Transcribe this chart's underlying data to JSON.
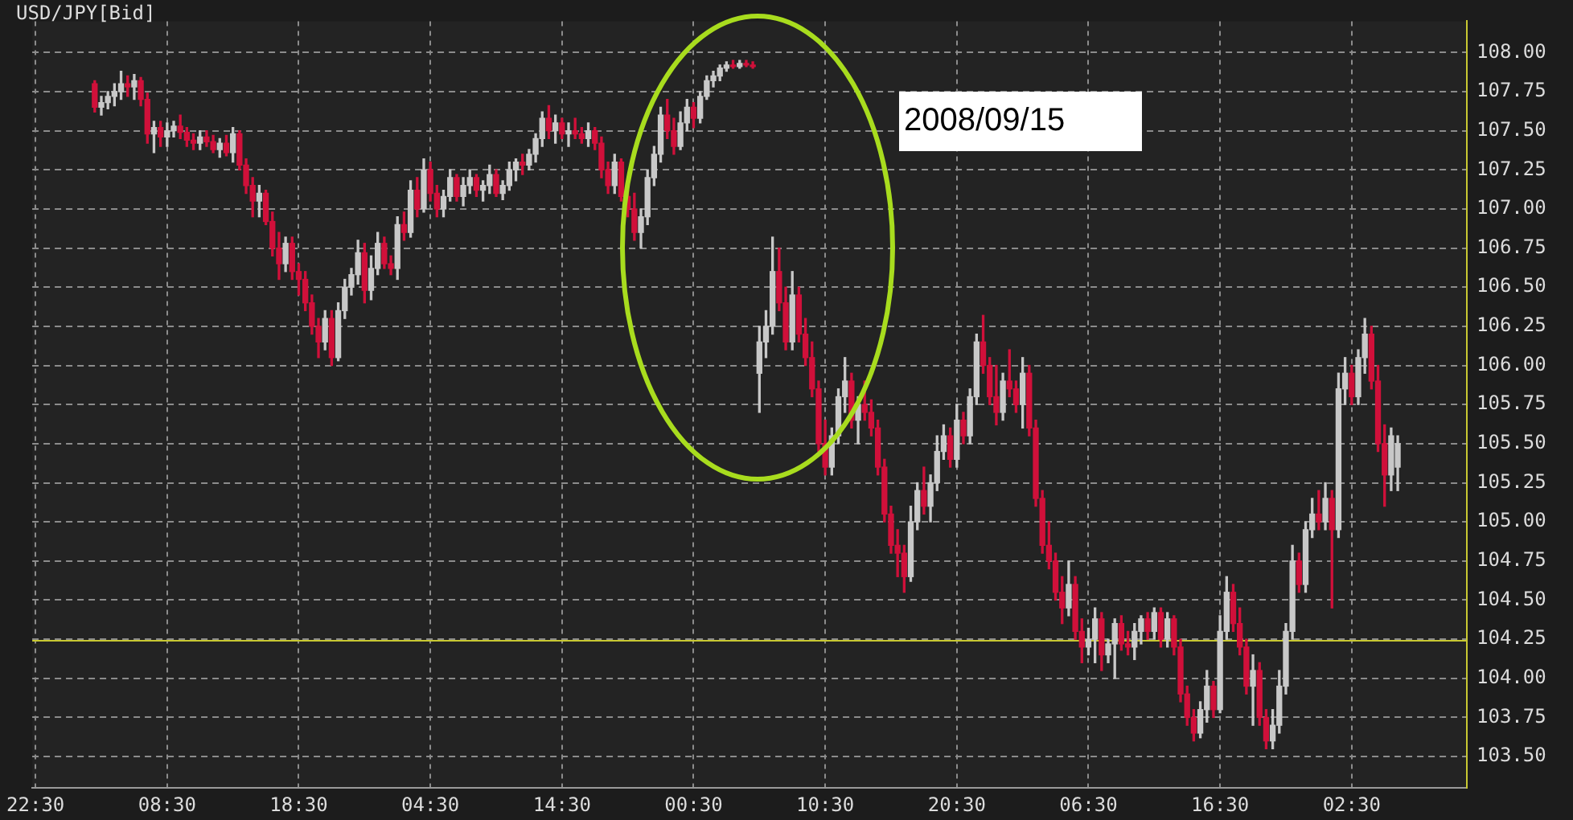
{
  "chart_data": {
    "type": "candlestick",
    "title": "USD/JPY[Bid]",
    "annotations": [
      "2008/09/15"
    ],
    "categories": [
      "22:30",
      null,
      null,
      null,
      null,
      null,
      null,
      null,
      null,
      null,
      null,
      null,
      null,
      null,
      null,
      null,
      null,
      null,
      null,
      null,
      "08:30",
      null,
      null,
      null,
      null,
      null,
      null,
      null,
      null,
      null,
      null,
      null,
      null,
      null,
      null,
      null,
      null,
      null,
      null,
      null,
      "18:30",
      null,
      null,
      null,
      null,
      null,
      null,
      null,
      null,
      null,
      null,
      null,
      null,
      null,
      null,
      null,
      null,
      null,
      null,
      null,
      "04:30",
      null,
      null,
      null,
      null,
      null,
      null,
      null,
      null,
      null,
      null,
      null,
      null,
      null,
      null,
      null,
      null,
      null,
      null,
      null,
      "14:30",
      null,
      null,
      null,
      null,
      null,
      null,
      null,
      null,
      null,
      null,
      null,
      null,
      null,
      null,
      null,
      null,
      null,
      null,
      null,
      "00:30",
      null,
      null,
      null,
      null,
      null,
      null,
      null,
      null,
      null,
      null,
      null,
      null,
      null,
      null,
      null,
      null,
      null,
      null,
      null,
      "10:30",
      null,
      null,
      null,
      null,
      null,
      null,
      null,
      null,
      null,
      null,
      null,
      null,
      null,
      null,
      null,
      null,
      null,
      null,
      null,
      "20:30",
      null,
      null,
      null,
      null,
      null,
      null,
      null,
      null,
      null,
      null,
      null,
      null,
      null,
      null,
      null,
      null,
      null,
      null,
      null,
      "06:30",
      null,
      null,
      null,
      null,
      null,
      null,
      null,
      null,
      null,
      null,
      null,
      null,
      null,
      null,
      null,
      null,
      null,
      null,
      null,
      "16:30",
      null,
      null,
      null,
      null,
      null,
      null,
      null,
      null,
      null,
      null,
      null,
      null,
      null,
      null,
      null,
      null,
      null,
      null,
      null,
      "02:30",
      null,
      null,
      null,
      null,
      null,
      null,
      null,
      null,
      null,
      null,
      null,
      null,
      null,
      null,
      null,
      null,
      null
    ],
    "ohlc": [
      null,
      null,
      null,
      null,
      null,
      null,
      null,
      null,
      null,
      [
        107.8,
        107.82,
        107.62,
        107.65
      ],
      [
        107.65,
        107.72,
        107.6,
        107.68
      ],
      [
        107.68,
        107.75,
        107.64,
        107.72
      ],
      [
        107.72,
        107.8,
        107.66,
        107.75
      ],
      [
        107.75,
        107.88,
        107.7,
        107.8
      ],
      [
        107.8,
        107.85,
        107.72,
        107.78
      ],
      [
        107.78,
        107.86,
        107.7,
        107.82
      ],
      [
        107.82,
        107.84,
        107.66,
        107.7
      ],
      [
        107.7,
        107.74,
        107.42,
        107.48
      ],
      [
        107.48,
        107.56,
        107.36,
        107.52
      ],
      [
        107.52,
        107.56,
        107.4,
        107.46
      ],
      [
        107.46,
        107.55,
        107.4,
        107.5
      ],
      [
        107.5,
        107.56,
        107.46,
        107.53
      ],
      [
        107.53,
        107.6,
        107.45,
        107.49
      ],
      [
        107.49,
        107.52,
        107.4,
        107.44
      ],
      [
        107.44,
        107.48,
        107.38,
        107.42
      ],
      [
        107.42,
        107.5,
        107.38,
        107.46
      ],
      [
        107.46,
        107.5,
        107.4,
        107.43
      ],
      [
        107.43,
        107.47,
        107.36,
        107.38
      ],
      [
        107.38,
        107.45,
        107.33,
        107.42
      ],
      [
        107.42,
        107.47,
        107.34,
        107.36
      ],
      [
        107.36,
        107.52,
        107.3,
        107.48
      ],
      [
        107.48,
        107.5,
        107.25,
        107.28
      ],
      [
        107.28,
        107.32,
        107.1,
        107.15
      ],
      [
        107.15,
        107.2,
        106.95,
        107.05
      ],
      [
        107.05,
        107.15,
        106.95,
        107.1
      ],
      [
        107.1,
        107.12,
        106.9,
        106.92
      ],
      [
        106.92,
        106.98,
        106.7,
        106.75
      ],
      [
        106.75,
        106.85,
        106.55,
        106.65
      ],
      [
        106.65,
        106.82,
        106.6,
        106.78
      ],
      [
        106.78,
        106.82,
        106.55,
        106.6
      ],
      [
        106.6,
        106.65,
        106.45,
        106.55
      ],
      [
        106.55,
        106.6,
        106.35,
        106.4
      ],
      [
        106.4,
        106.45,
        106.2,
        106.25
      ],
      [
        106.25,
        106.3,
        106.05,
        106.15
      ],
      [
        106.15,
        106.35,
        106.1,
        106.3
      ],
      [
        106.3,
        106.35,
        106.0,
        106.05
      ],
      [
        106.05,
        106.4,
        106.03,
        106.35
      ],
      [
        106.35,
        106.55,
        106.3,
        106.5
      ],
      [
        106.5,
        106.62,
        106.45,
        106.58
      ],
      [
        106.58,
        106.8,
        106.52,
        106.72
      ],
      [
        106.72,
        106.78,
        106.4,
        106.48
      ],
      [
        106.48,
        106.7,
        106.42,
        106.62
      ],
      [
        106.62,
        106.85,
        106.58,
        106.78
      ],
      [
        106.78,
        106.82,
        106.62,
        106.65
      ],
      [
        106.65,
        106.7,
        106.58,
        106.62
      ],
      [
        106.62,
        106.95,
        106.55,
        106.9
      ],
      [
        106.9,
        106.98,
        106.8,
        106.85
      ],
      [
        106.85,
        107.18,
        106.82,
        107.12
      ],
      [
        107.12,
        107.2,
        106.95,
        107.0
      ],
      [
        107.0,
        107.32,
        106.98,
        107.25
      ],
      [
        107.25,
        107.3,
        107.05,
        107.1
      ],
      [
        107.1,
        107.15,
        106.95,
        107.0
      ],
      [
        107.0,
        107.12,
        106.95,
        107.08
      ],
      [
        107.08,
        107.25,
        107.05,
        107.2
      ],
      [
        107.2,
        107.22,
        107.05,
        107.08
      ],
      [
        107.08,
        107.2,
        107.02,
        107.15
      ],
      [
        107.15,
        107.25,
        107.1,
        107.2
      ],
      [
        107.2,
        107.22,
        107.08,
        107.12
      ],
      [
        107.12,
        107.18,
        107.05,
        107.15
      ],
      [
        107.15,
        107.28,
        107.1,
        107.22
      ],
      [
        107.22,
        107.25,
        107.08,
        107.1
      ],
      [
        107.1,
        107.18,
        107.06,
        107.15
      ],
      [
        107.15,
        107.3,
        107.12,
        107.25
      ],
      [
        107.25,
        107.32,
        107.18,
        107.3
      ],
      [
        107.3,
        107.35,
        107.22,
        107.28
      ],
      [
        107.28,
        107.38,
        107.25,
        107.35
      ],
      [
        107.35,
        107.48,
        107.3,
        107.45
      ],
      [
        107.45,
        107.62,
        107.4,
        107.58
      ],
      [
        107.58,
        107.66,
        107.45,
        107.5
      ],
      [
        107.5,
        107.6,
        107.42,
        107.55
      ],
      [
        107.55,
        107.58,
        107.45,
        107.48
      ],
      [
        107.48,
        107.55,
        107.4,
        107.5
      ],
      [
        107.5,
        107.58,
        107.45,
        107.48
      ],
      [
        107.48,
        107.52,
        107.42,
        107.45
      ],
      [
        107.45,
        107.55,
        107.4,
        107.5
      ],
      [
        107.5,
        107.52,
        107.38,
        107.42
      ],
      [
        107.42,
        107.46,
        107.2,
        107.25
      ],
      [
        107.25,
        107.3,
        107.1,
        107.15
      ],
      [
        107.15,
        107.35,
        107.1,
        107.3
      ],
      [
        107.3,
        107.32,
        107.05,
        107.08
      ],
      [
        107.08,
        107.12,
        106.95,
        107.0
      ],
      [
        107.0,
        107.1,
        106.8,
        106.85
      ],
      [
        106.85,
        107.0,
        106.75,
        106.95
      ],
      [
        106.95,
        107.25,
        106.9,
        107.2
      ],
      [
        107.2,
        107.4,
        107.15,
        107.35
      ],
      [
        107.35,
        107.65,
        107.3,
        107.6
      ],
      [
        107.6,
        107.7,
        107.45,
        107.5
      ],
      [
        107.5,
        107.58,
        107.35,
        107.4
      ],
      [
        107.4,
        107.62,
        107.38,
        107.55
      ],
      [
        107.55,
        107.7,
        107.5,
        107.65
      ],
      [
        107.65,
        107.68,
        107.52,
        107.58
      ],
      [
        107.58,
        107.75,
        107.55,
        107.72
      ],
      [
        107.72,
        107.85,
        107.7,
        107.82
      ],
      [
        107.82,
        107.88,
        107.78,
        107.85
      ],
      [
        107.85,
        107.92,
        107.82,
        107.9
      ],
      [
        107.9,
        107.94,
        107.88,
        107.92
      ],
      [
        107.92,
        107.95,
        107.9,
        107.91
      ],
      [
        107.91,
        107.95,
        107.9,
        107.93
      ],
      [
        107.93,
        107.95,
        107.91,
        107.92
      ],
      [
        107.92,
        107.94,
        107.9,
        107.91
      ],
      [
        105.95,
        106.25,
        105.7,
        106.15
      ],
      [
        106.15,
        106.35,
        106.05,
        106.25
      ],
      [
        106.25,
        106.82,
        106.2,
        106.6
      ],
      [
        106.6,
        106.75,
        106.35,
        106.4
      ],
      [
        106.4,
        106.5,
        106.1,
        106.15
      ],
      [
        106.15,
        106.6,
        106.1,
        106.45
      ],
      [
        106.45,
        106.5,
        106.15,
        106.2
      ],
      [
        106.2,
        106.3,
        106.0,
        106.05
      ],
      [
        106.05,
        106.15,
        105.8,
        105.85
      ],
      [
        105.85,
        105.9,
        105.45,
        105.5
      ],
      [
        105.5,
        105.65,
        105.3,
        105.35
      ],
      [
        105.35,
        105.6,
        105.3,
        105.55
      ],
      [
        105.55,
        105.85,
        105.5,
        105.8
      ],
      [
        105.8,
        106.05,
        105.7,
        105.9
      ],
      [
        105.9,
        105.95,
        105.6,
        105.65
      ],
      [
        105.65,
        105.8,
        105.5,
        105.75
      ],
      [
        105.75,
        105.9,
        105.65,
        105.7
      ],
      [
        105.7,
        105.78,
        105.55,
        105.6
      ],
      [
        105.6,
        105.65,
        105.3,
        105.35
      ],
      [
        105.35,
        105.4,
        105.0,
        105.05
      ],
      [
        105.05,
        105.1,
        104.8,
        104.85
      ],
      [
        104.85,
        104.95,
        104.65,
        104.8
      ],
      [
        104.8,
        104.85,
        104.55,
        104.65
      ],
      [
        104.65,
        105.1,
        104.62,
        105.0
      ],
      [
        105.0,
        105.25,
        104.95,
        105.2
      ],
      [
        105.2,
        105.35,
        105.05,
        105.1
      ],
      [
        105.1,
        105.3,
        105.0,
        105.25
      ],
      [
        105.25,
        105.55,
        105.2,
        105.45
      ],
      [
        105.45,
        105.62,
        105.4,
        105.55
      ],
      [
        105.55,
        105.6,
        105.35,
        105.4
      ],
      [
        105.4,
        105.75,
        105.35,
        105.65
      ],
      [
        105.65,
        105.7,
        105.5,
        105.55
      ],
      [
        105.55,
        105.85,
        105.5,
        105.8
      ],
      [
        105.8,
        106.2,
        105.75,
        106.15
      ],
      [
        106.15,
        106.32,
        105.95,
        106.0
      ],
      [
        106.0,
        106.05,
        105.75,
        105.8
      ],
      [
        105.8,
        106.0,
        105.62,
        105.7
      ],
      [
        105.7,
        105.95,
        105.65,
        105.9
      ],
      [
        105.9,
        106.1,
        105.8,
        105.85
      ],
      [
        105.85,
        105.9,
        105.7,
        105.75
      ],
      [
        105.75,
        106.05,
        105.6,
        105.95
      ],
      [
        105.95,
        106.0,
        105.55,
        105.6
      ],
      [
        105.6,
        105.65,
        105.1,
        105.15
      ],
      [
        105.15,
        105.2,
        104.8,
        104.85
      ],
      [
        104.85,
        105.0,
        104.7,
        104.75
      ],
      [
        104.75,
        104.8,
        104.5,
        104.55
      ],
      [
        104.55,
        104.65,
        104.35,
        104.45
      ],
      [
        104.45,
        104.75,
        104.4,
        104.6
      ],
      [
        104.6,
        104.65,
        104.25,
        104.3
      ],
      [
        104.3,
        104.38,
        104.1,
        104.2
      ],
      [
        104.2,
        104.32,
        104.15,
        104.25
      ],
      [
        104.25,
        104.45,
        104.1,
        104.38
      ],
      [
        104.38,
        104.42,
        104.05,
        104.15
      ],
      [
        104.15,
        104.25,
        104.1,
        104.22
      ],
      [
        104.22,
        104.38,
        104.0,
        104.35
      ],
      [
        104.35,
        104.4,
        104.18,
        104.22
      ],
      [
        104.22,
        104.3,
        104.15,
        104.2
      ],
      [
        104.2,
        104.35,
        104.12,
        104.3
      ],
      [
        104.3,
        104.4,
        104.22,
        104.38
      ],
      [
        104.38,
        104.42,
        104.25,
        104.3
      ],
      [
        104.3,
        104.45,
        104.25,
        104.42
      ],
      [
        104.42,
        104.45,
        104.2,
        104.25
      ],
      [
        104.25,
        104.42,
        104.2,
        104.38
      ],
      [
        104.38,
        104.4,
        104.15,
        104.2
      ],
      [
        104.2,
        104.25,
        103.85,
        103.9
      ],
      [
        103.9,
        103.95,
        103.7,
        103.75
      ],
      [
        103.75,
        103.8,
        103.6,
        103.65
      ],
      [
        103.65,
        103.85,
        103.62,
        103.8
      ],
      [
        103.8,
        104.05,
        103.72,
        103.95
      ],
      [
        103.95,
        103.98,
        103.75,
        103.8
      ],
      [
        103.8,
        104.4,
        103.78,
        104.3
      ],
      [
        104.3,
        104.65,
        104.25,
        104.55
      ],
      [
        104.55,
        104.6,
        104.3,
        104.35
      ],
      [
        104.35,
        104.45,
        104.15,
        104.2
      ],
      [
        104.2,
        104.25,
        103.9,
        103.95
      ],
      [
        103.95,
        104.15,
        103.7,
        104.05
      ],
      [
        104.05,
        104.1,
        103.7,
        103.75
      ],
      [
        103.75,
        103.8,
        103.55,
        103.6
      ],
      [
        103.6,
        103.8,
        103.55,
        103.7
      ],
      [
        103.7,
        104.05,
        103.65,
        103.95
      ],
      [
        103.95,
        104.35,
        103.9,
        104.3
      ],
      [
        104.3,
        104.85,
        104.25,
        104.75
      ],
      [
        104.75,
        104.8,
        104.55,
        104.6
      ],
      [
        104.6,
        105.0,
        104.55,
        104.95
      ],
      [
        104.95,
        105.15,
        104.9,
        105.05
      ],
      [
        105.05,
        105.2,
        104.95,
        105.0
      ],
      [
        105.0,
        105.25,
        104.95,
        105.15
      ],
      [
        105.15,
        105.2,
        104.45,
        104.95
      ],
      [
        104.95,
        105.95,
        104.9,
        105.85
      ],
      [
        105.85,
        106.05,
        105.75,
        105.95
      ],
      [
        105.95,
        106.0,
        105.75,
        105.8
      ],
      [
        105.8,
        106.1,
        105.75,
        106.05
      ],
      [
        106.05,
        106.3,
        105.95,
        106.2
      ],
      [
        106.2,
        106.25,
        105.85,
        105.9
      ],
      [
        105.9,
        106.0,
        105.45,
        105.5
      ],
      [
        105.5,
        105.62,
        105.1,
        105.3
      ],
      [
        105.3,
        105.6,
        105.2,
        105.55
      ],
      [
        105.35,
        105.55,
        105.2,
        105.5
      ],
      null,
      null,
      null,
      null,
      null,
      null,
      null,
      null,
      null,
      null
    ],
    "ylim": [
      103.3,
      108.2
    ],
    "yticks": [
      {
        "value": 103.5,
        "label": "103.50"
      },
      103.75,
      {
        "value": 104,
        "label": "104.00"
      },
      104.25,
      {
        "value": 104.5,
        "label": "104.50"
      },
      104.75,
      {
        "value": 105,
        "label": "105.00"
      },
      105.25,
      {
        "value": 105.5,
        "label": "105.50"
      },
      105.75,
      {
        "value": 106,
        "label": "106.00"
      },
      106.25,
      {
        "value": 106.5,
        "label": "106.50"
      },
      106.75,
      {
        "value": 107,
        "label": "107.00"
      },
      107.25,
      {
        "value": 107.5,
        "label": "107.50"
      },
      107.75,
      {
        "value": 108,
        "label": "108.00"
      }
    ],
    "grid": true,
    "ref_lines": [
      {
        "axis": "y",
        "value": 104.25,
        "color": "#c8c832"
      }
    ]
  }
}
